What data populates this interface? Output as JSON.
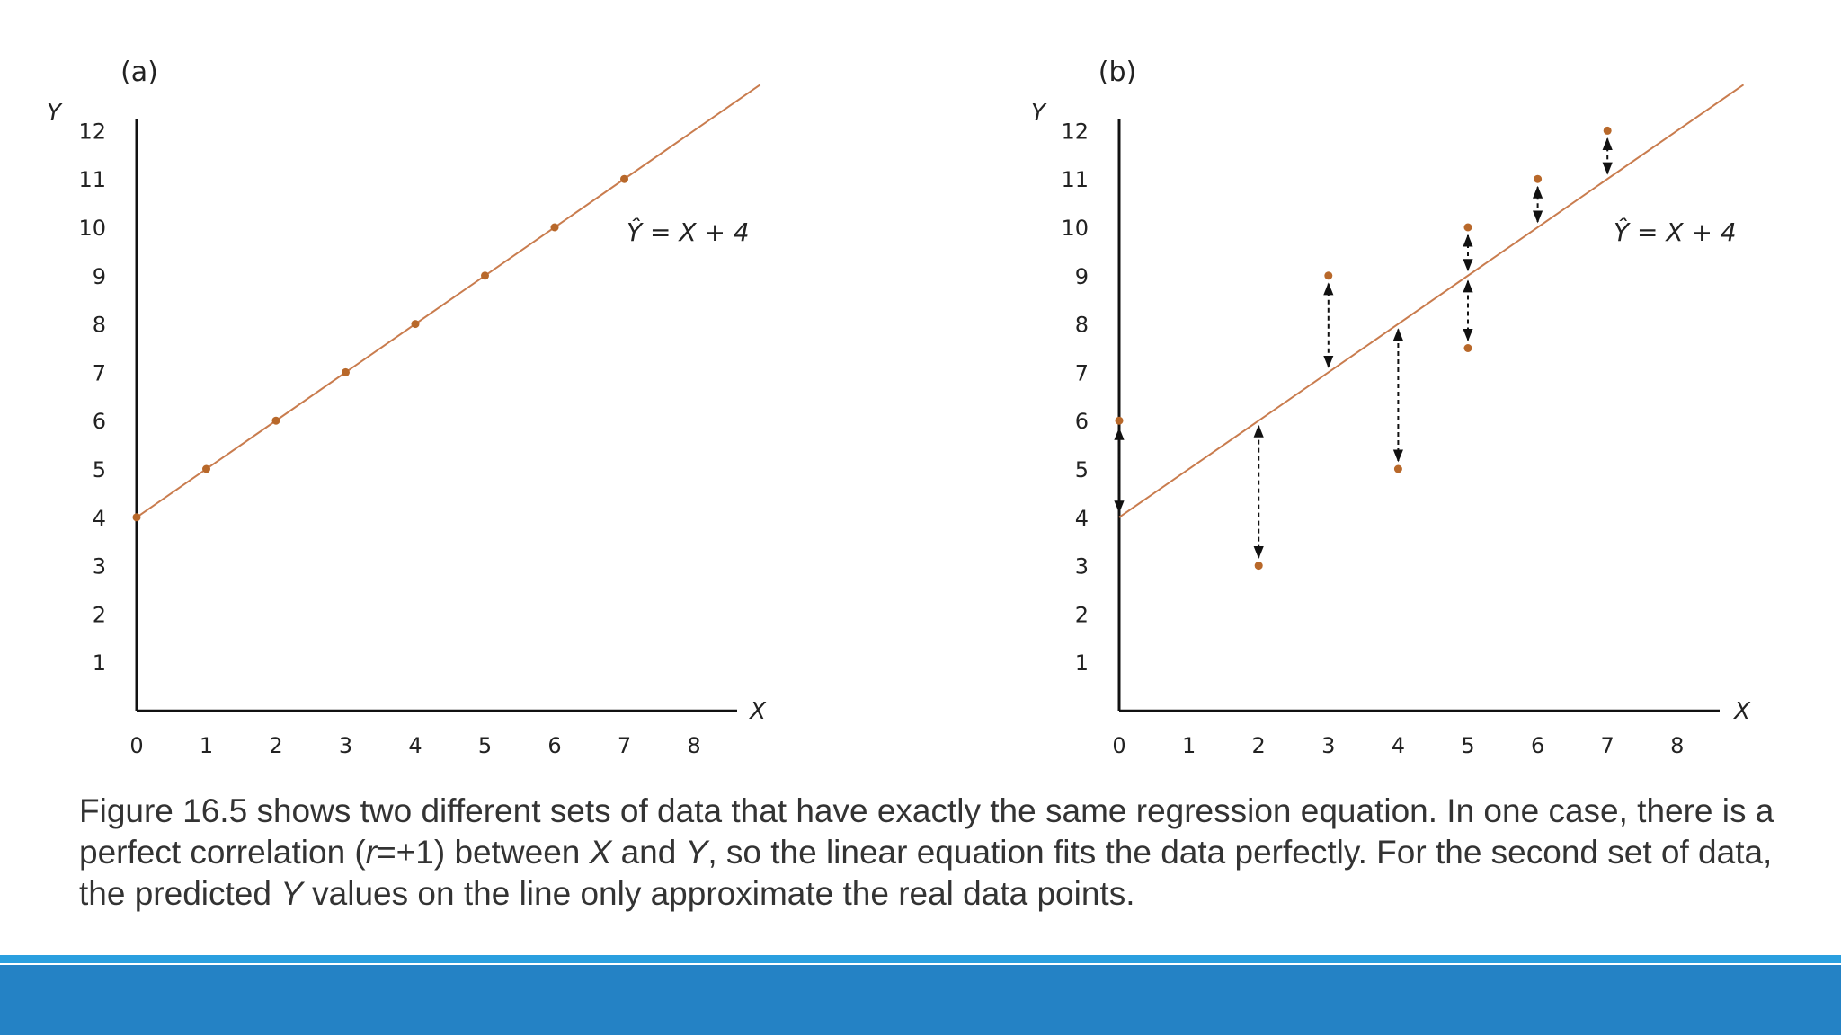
{
  "chart_data": [
    {
      "type": "scatter",
      "panel": "(a)",
      "xlabel": "X",
      "ylabel": "Y",
      "xlim": [
        0,
        8.6
      ],
      "ylim": [
        0,
        12.6
      ],
      "x_ticks": [
        "0",
        "1",
        "2",
        "3",
        "4",
        "5",
        "6",
        "7",
        "8"
      ],
      "y_ticks": [
        "1",
        "2",
        "3",
        "4",
        "5",
        "6",
        "7",
        "8",
        "9",
        "10",
        "11",
        "12"
      ],
      "regression": {
        "label": "Ŷ = X + 4",
        "slope": 1,
        "intercept": 4
      },
      "points": [
        [
          0,
          4
        ],
        [
          1,
          5
        ],
        [
          2,
          6
        ],
        [
          3,
          7
        ],
        [
          4,
          8
        ],
        [
          5,
          9
        ],
        [
          6,
          10
        ],
        [
          7,
          11
        ]
      ]
    },
    {
      "type": "scatter",
      "panel": "(b)",
      "xlabel": "X",
      "ylabel": "Y",
      "xlim": [
        0,
        8.6
      ],
      "ylim": [
        0,
        12.6
      ],
      "x_ticks": [
        "0",
        "1",
        "2",
        "3",
        "4",
        "5",
        "6",
        "7",
        "8"
      ],
      "y_ticks": [
        "1",
        "2",
        "3",
        "4",
        "5",
        "6",
        "7",
        "8",
        "9",
        "10",
        "11",
        "12"
      ],
      "regression": {
        "label": "Ŷ = X + 4",
        "slope": 1,
        "intercept": 4
      },
      "points": [
        [
          0,
          6
        ],
        [
          2,
          3
        ],
        [
          3,
          9
        ],
        [
          4,
          5
        ],
        [
          5,
          10
        ],
        [
          5,
          7.5
        ],
        [
          6,
          11
        ],
        [
          7,
          12
        ]
      ]
    }
  ],
  "caption": {
    "segments": [
      "Figure 16.5 shows two different sets of data that have exactly the same regression equation. In one case, there is a perfect correlation (",
      "r",
      "=+1) between ",
      "X",
      " and ",
      "Y",
      ", so the linear equation fits the data perfectly. For the second set of data, the predicted ",
      "Y",
      " values on the line only approximate the real data points."
    ]
  },
  "colors": {
    "point": "#b8682a",
    "line": "#c97c4e",
    "axis": "#111111",
    "footer_band": "#2482c5",
    "footer_thin": "#2a9fdf"
  }
}
